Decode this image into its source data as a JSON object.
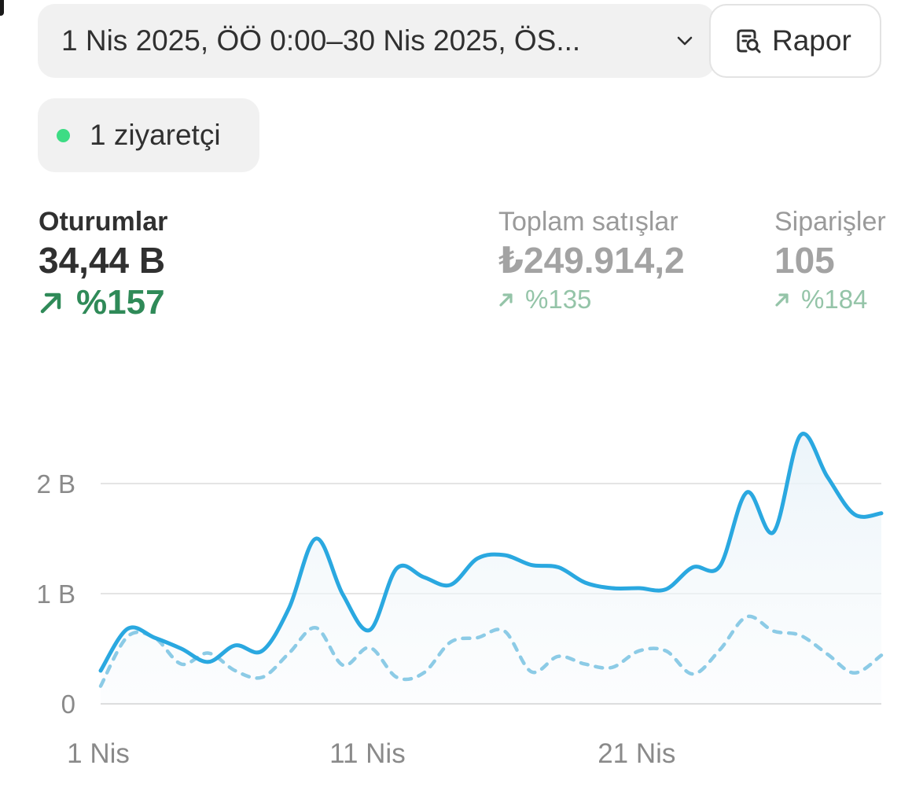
{
  "date_range": {
    "label": "1 Nis 2025, ÖÖ 0:00–30 Nis 2025, ÖS...",
    "icon": "chevron-down-icon"
  },
  "report_button": {
    "label": "Rapor",
    "icon": "report-search-icon"
  },
  "visitors": {
    "label": "1 ziyaretçi",
    "indicator_color": "#3ddc84"
  },
  "metrics": [
    {
      "label": "Oturumlar",
      "value": "34,44 B",
      "change": "%157",
      "direction": "up",
      "selected": true
    },
    {
      "label": "Toplam satışlar",
      "value": "₺249.914,2",
      "change": "%135",
      "direction": "up",
      "selected": false
    },
    {
      "label": "Siparişler",
      "value": "105",
      "change": "%184",
      "direction": "up",
      "selected": false
    }
  ],
  "colors": {
    "accent": "#2aa8e0",
    "comparison": "#8ccbe6",
    "positive": "#2f8a58",
    "positive_muted": "#94c4a8"
  },
  "chart_data": {
    "type": "line",
    "x": [
      1,
      2,
      3,
      4,
      5,
      6,
      7,
      8,
      9,
      10,
      11,
      12,
      13,
      14,
      15,
      16,
      17,
      18,
      19,
      20,
      21,
      22,
      23,
      24,
      25,
      26,
      27,
      28,
      29,
      30
    ],
    "x_ticks": [
      {
        "x": 1,
        "label": "1 Nis"
      },
      {
        "x": 11,
        "label": "11 Nis"
      },
      {
        "x": 21,
        "label": "21 Nis"
      }
    ],
    "y_ticks": [
      {
        "value": 0,
        "label": "0"
      },
      {
        "value": 1000,
        "label": "1 B"
      },
      {
        "value": 2000,
        "label": "2 B"
      }
    ],
    "ylim": [
      0,
      2000
    ],
    "grid": true,
    "series": [
      {
        "style": "solid",
        "color": "#2aa8e0",
        "values": [
          300,
          680,
          600,
          500,
          380,
          530,
          480,
          870,
          1500,
          990,
          670,
          1230,
          1150,
          1080,
          1320,
          1350,
          1260,
          1240,
          1100,
          1050,
          1050,
          1040,
          1240,
          1250,
          1920,
          1560,
          2440,
          2060,
          1720,
          1730
        ]
      },
      {
        "style": "dashed",
        "color": "#8ccbe6",
        "values": [
          160,
          610,
          600,
          360,
          460,
          300,
          240,
          460,
          690,
          350,
          510,
          240,
          280,
          560,
          600,
          660,
          290,
          430,
          360,
          330,
          480,
          480,
          270,
          490,
          790,
          660,
          620,
          450,
          280,
          440
        ]
      }
    ]
  }
}
